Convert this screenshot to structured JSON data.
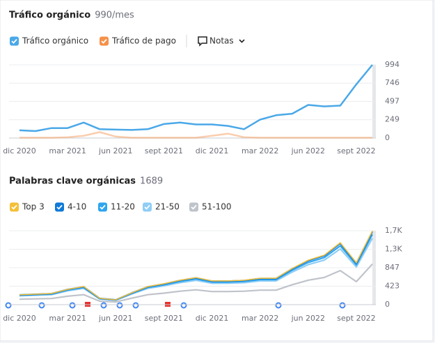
{
  "chart_data": [
    {
      "type": "line",
      "title": "Tráfico orgánico",
      "subtitle": "990/mes",
      "notes_label": "Notas",
      "categories": [
        "dic 2020",
        null,
        null,
        "mar 2021",
        null,
        null,
        "jun 2021",
        null,
        null,
        "sept 2021",
        null,
        null,
        "dic 2021",
        null,
        null,
        "mar 2022",
        null,
        null,
        "jun 2022",
        null,
        null,
        "sept 2022",
        null
      ],
      "series": [
        {
          "name": "Tráfico orgánico",
          "color": "#4aa8e8",
          "values": [
            105,
            95,
            135,
            135,
            210,
            120,
            115,
            110,
            120,
            190,
            210,
            185,
            185,
            165,
            120,
            250,
            310,
            330,
            450,
            430,
            440,
            730,
            994
          ]
        },
        {
          "name": "Tráfico de pago",
          "color": "#f5914a",
          "values": [
            5,
            5,
            5,
            10,
            30,
            80,
            20,
            5,
            5,
            5,
            5,
            5,
            30,
            60,
            10,
            5,
            5,
            5,
            5,
            5,
            5,
            5,
            5
          ]
        }
      ],
      "ylim": [
        0,
        994
      ],
      "yticks": [
        0,
        249,
        497,
        746,
        994
      ],
      "grid": true
    },
    {
      "type": "stacked_line",
      "title": "Palabras clave orgánicas",
      "subtitle": "1689",
      "categories": [
        "dic 2020",
        null,
        null,
        "mar 2021",
        null,
        null,
        "jun 2021",
        null,
        null,
        "sept 2021",
        null,
        null,
        "dic 2021",
        null,
        null,
        "mar 2022",
        null,
        null,
        "jun 2022",
        null,
        null,
        "sept 2022",
        null
      ],
      "series": [
        {
          "name": "Top 3",
          "color": "#f5c037",
          "values": [
            2,
            2,
            3,
            2,
            4,
            1,
            0,
            1,
            4,
            5,
            6,
            6,
            5,
            5,
            6,
            6,
            6,
            7,
            10,
            12,
            14,
            10,
            15
          ]
        },
        {
          "name": "4-10",
          "color": "#0e7ad9",
          "values": [
            9,
            10,
            10,
            14,
            17,
            6,
            4,
            11,
            17,
            19,
            22,
            25,
            22,
            22,
            22,
            24,
            24,
            33,
            41,
            45,
            57,
            38,
            68
          ]
        },
        {
          "name": "11-20",
          "color": "#2ea5ef",
          "values": [
            11,
            12,
            13,
            18,
            21,
            7,
            6,
            14,
            21,
            24,
            28,
            31,
            27,
            27,
            28,
            30,
            30,
            42,
            51,
            57,
            71,
            48,
            85
          ]
        },
        {
          "name": "21-50",
          "color": "#8fcdf6",
          "values": [
            79,
            84,
            89,
            123,
            145,
            51,
            39,
            95,
            145,
            168,
            196,
            217,
            191,
            191,
            196,
            212,
            212,
            291,
            357,
            397,
            497,
            336,
            592
          ]
        },
        {
          "name": "51-100",
          "color": "#bfc3ca",
          "values": [
            124,
            132,
            140,
            193,
            228,
            80,
            61,
            149,
            228,
            264,
            308,
            341,
            300,
            300,
            308,
            333,
            333,
            457,
            561,
            624,
            781,
            528,
            930
          ]
        }
      ],
      "ylim": [
        0,
        1694
      ],
      "yticks": [
        0,
        423,
        847,
        {
          "value": 1270,
          "label": "1,3K"
        },
        {
          "value": 1694,
          "label": "1,7K"
        }
      ],
      "grid": true
    }
  ]
}
